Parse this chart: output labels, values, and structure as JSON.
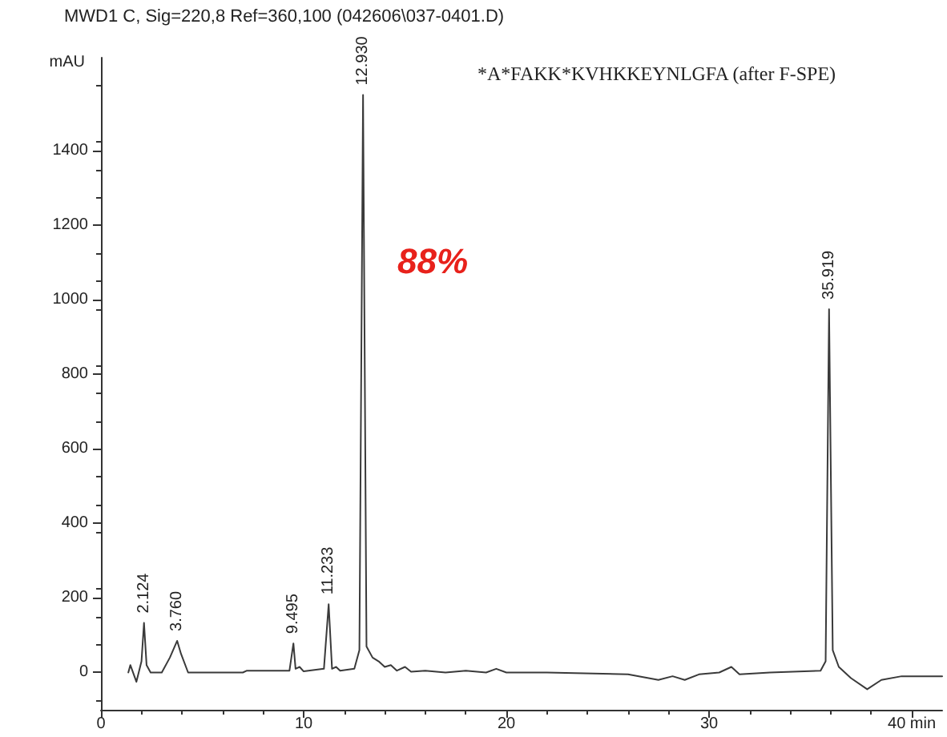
{
  "chart_data": {
    "type": "line",
    "title": "MWD1 C, Sig=220,8 Ref=360,100 (042606\\037-0401.D)",
    "ylabel": "mAU",
    "x": [
      1.35,
      1.45,
      1.75,
      2.0,
      2.124,
      2.25,
      2.45,
      3.0,
      3.4,
      3.76,
      3.95,
      4.3,
      7.0,
      7.2,
      9.3,
      9.495,
      9.6,
      9.8,
      10.0,
      11.0,
      11.233,
      11.4,
      11.6,
      11.8,
      12.5,
      12.75,
      12.93,
      13.1,
      13.4,
      13.7,
      14.0,
      14.3,
      14.6,
      15.0,
      15.3,
      16.0,
      17.0,
      18.0,
      19.0,
      19.5,
      20.0,
      22.0,
      26.0,
      27.5,
      28.2,
      28.8,
      29.5,
      30.5,
      31.1,
      31.5,
      33.0,
      35.5,
      35.75,
      35.919,
      36.1,
      36.4,
      37.0,
      37.8,
      38.5,
      39.5,
      41.5
    ],
    "series": [
      {
        "color": "#3a3a3a",
        "values": [
          0,
          20,
          -25,
          30,
          133,
          20,
          0,
          0,
          40,
          85,
          50,
          0,
          0,
          5,
          5,
          78,
          10,
          15,
          3,
          10,
          183,
          10,
          15,
          5,
          10,
          60,
          1550,
          70,
          40,
          30,
          15,
          20,
          5,
          15,
          2,
          5,
          0,
          5,
          0,
          10,
          0,
          0,
          -5,
          -20,
          -10,
          -20,
          -5,
          0,
          15,
          -5,
          0,
          5,
          30,
          975,
          60,
          15,
          -15,
          -45,
          -20,
          -10,
          -10
        ]
      }
    ],
    "xlim": [
      0,
      41.5
    ],
    "xticks": [
      0,
      10,
      20,
      30,
      {
        "value": 40,
        "label": "40 min"
      }
    ],
    "ylim": [
      -100,
      1650
    ],
    "yticks": [
      0,
      200,
      400,
      600,
      800,
      1000,
      1200,
      1400
    ],
    "grid": false,
    "marker": "none",
    "line_style": "solid",
    "annotations": [
      {
        "text": "2.124",
        "x": 2.124,
        "y": 133
      },
      {
        "text": "3.760",
        "x": 3.76,
        "y": 85
      },
      {
        "text": "9.495",
        "x": 9.495,
        "y": 78
      },
      {
        "text": "11.233",
        "x": 11.233,
        "y": 183
      },
      {
        "text": "12.930",
        "x": 12.93,
        "y": 1550
      },
      {
        "text": "35.919",
        "x": 35.919,
        "y": 975
      },
      "*A*FAKK*KVHKKEYNLGFA (after F-SPE)",
      "88%"
    ]
  }
}
